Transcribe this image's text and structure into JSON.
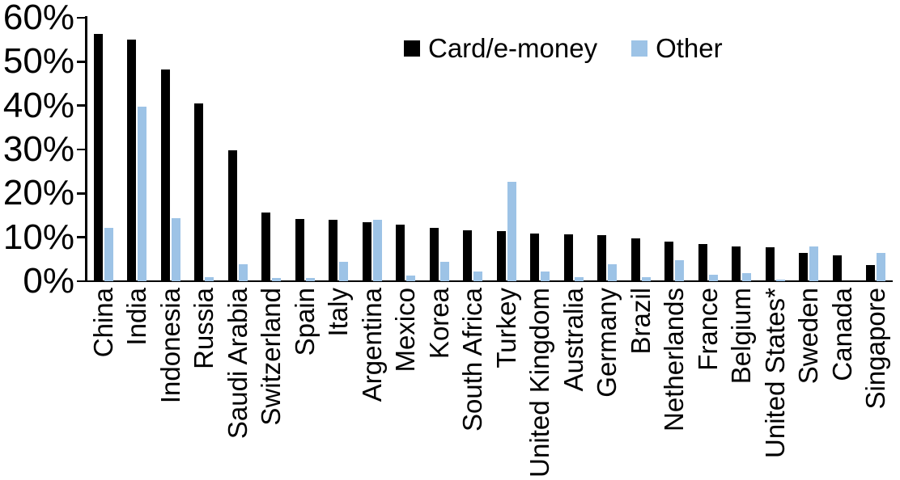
{
  "chart_data": {
    "type": "bar",
    "title": "",
    "categories": [
      "China",
      "India",
      "Indonesia",
      "Russia",
      "Saudi Arabia",
      "Switzerland",
      "Spain",
      "Italy",
      "Argentina",
      "Mexico",
      "Korea",
      "South Africa",
      "Turkey",
      "United Kingdom",
      "Australia",
      "Germany",
      "Brazil",
      "Netherlands",
      "France",
      "Belgium",
      "United States*",
      "Sweden",
      "Canada",
      "Singapore"
    ],
    "series": [
      {
        "name": "Card/e-money",
        "color": "#000000",
        "values": [
          56.3,
          55.1,
          48.2,
          40.4,
          29.9,
          15.6,
          14.1,
          14.0,
          13.4,
          12.8,
          12.1,
          11.6,
          11.5,
          10.9,
          10.7,
          10.5,
          9.7,
          9.1,
          8.4,
          8.0,
          7.7,
          6.5,
          5.8,
          3.7
        ]
      },
      {
        "name": "Other",
        "color": "#9DC3E6",
        "values": [
          12.2,
          39.7,
          14.4,
          0.9,
          3.8,
          0.7,
          0.8,
          4.4,
          13.9,
          1.2,
          4.5,
          2.2,
          22.6,
          2.3,
          1.0,
          3.9,
          1.0,
          4.7,
          1.4,
          1.9,
          0.3,
          7.9,
          0.0,
          6.5
        ]
      }
    ],
    "xlabel": "",
    "ylabel": "",
    "ylim": [
      0,
      60
    ],
    "ytick_values": [
      60,
      50,
      40,
      30,
      20,
      10,
      0
    ],
    "ytick_labels": [
      "60%",
      "50%",
      "40%",
      "30%",
      "20%",
      "10%",
      "0%"
    ],
    "x_label_rotation": "90-degrees-up",
    "legend_position": "top-center",
    "grid": false,
    "axis_color": "#000000",
    "background_color": "#ffffff"
  }
}
